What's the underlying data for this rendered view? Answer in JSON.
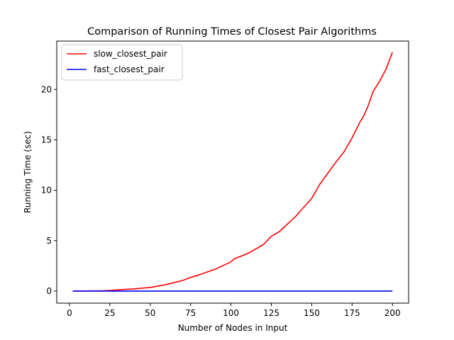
{
  "chart_data": {
    "type": "line",
    "title": "Comparison of Running Times of Closest Pair Algorithms",
    "xlabel": "Number of Nodes in Input",
    "ylabel": "Running Time (sec)",
    "xlim": [
      -7.9,
      210
    ],
    "ylim": [
      -1.2,
      24.8
    ],
    "xticks": [
      0,
      25,
      50,
      75,
      100,
      125,
      150,
      175,
      200
    ],
    "yticks": [
      0,
      5,
      10,
      15,
      20
    ],
    "grid": false,
    "legend": {
      "placement": "top-left"
    },
    "x": [
      2,
      10,
      20,
      25,
      30,
      40,
      50,
      60,
      70,
      75,
      80,
      90,
      100,
      102,
      110,
      120,
      125,
      130,
      140,
      150,
      155,
      160,
      165,
      170,
      175,
      180,
      182,
      185,
      188,
      192,
      196,
      200
    ],
    "series": [
      {
        "name": "slow_closest_pair",
        "color": "#ff0000",
        "values": [
          0.0,
          0.01,
          0.03,
          0.06,
          0.12,
          0.22,
          0.36,
          0.65,
          1.05,
          1.35,
          1.6,
          2.15,
          2.9,
          3.2,
          3.7,
          4.6,
          5.45,
          5.9,
          7.4,
          9.2,
          10.6,
          11.7,
          12.8,
          13.8,
          15.2,
          16.8,
          17.3,
          18.4,
          19.8,
          20.8,
          22.0,
          23.7
        ]
      },
      {
        "name": "fast_closest_pair",
        "color": "#0000ff",
        "values": [
          0.0,
          0.0,
          0.0,
          0.0,
          0.0,
          0.0,
          0.0,
          0.0,
          0.0,
          0.0,
          0.0,
          0.0,
          0.0,
          0.0,
          0.0,
          0.0,
          0.0,
          0.0,
          0.0,
          0.0,
          0.0,
          0.0,
          0.0,
          0.0,
          0.0,
          0.0,
          0.0,
          0.0,
          0.0,
          0.0,
          0.0,
          0.01
        ]
      }
    ]
  }
}
